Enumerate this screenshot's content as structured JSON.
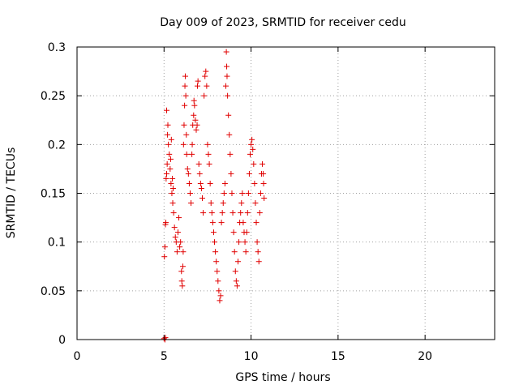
{
  "chart_data": {
    "type": "scatter",
    "title": "Day 009 of 2023, SRMTID for receiver cedu",
    "xlabel": "GPS time / hours",
    "ylabel": "SRMTID / TECUs",
    "xlim": [
      0,
      24
    ],
    "ylim": [
      0,
      0.3
    ],
    "x_ticks": [
      0,
      5,
      10,
      15,
      20
    ],
    "x_tick_labels": [
      "0",
      "5",
      "10",
      "15",
      "20"
    ],
    "y_ticks": [
      0,
      0.05,
      0.1,
      0.15,
      0.2,
      0.25,
      0.3
    ],
    "y_tick_labels": [
      "0",
      "0.05",
      "0.1",
      "0.15",
      "0.2",
      "0.25",
      "0.3"
    ],
    "grid": true,
    "marker": "+",
    "color": "#e00000",
    "series": [
      {
        "name": "SRMTID",
        "points": [
          [
            5.0,
            0.001
          ],
          [
            5.05,
            0.0
          ],
          [
            5.08,
            0.002
          ],
          [
            5.02,
            0.085
          ],
          [
            5.05,
            0.095
          ],
          [
            5.08,
            0.118
          ],
          [
            5.1,
            0.12
          ],
          [
            5.12,
            0.165
          ],
          [
            5.15,
            0.17
          ],
          [
            5.18,
            0.18
          ],
          [
            5.2,
            0.21
          ],
          [
            5.22,
            0.22
          ],
          [
            5.15,
            0.235
          ],
          [
            5.25,
            0.2
          ],
          [
            5.3,
            0.19
          ],
          [
            5.35,
            0.175
          ],
          [
            5.4,
            0.16
          ],
          [
            5.45,
            0.15
          ],
          [
            5.5,
            0.14
          ],
          [
            5.38,
            0.185
          ],
          [
            5.42,
            0.205
          ],
          [
            5.48,
            0.165
          ],
          [
            5.52,
            0.155
          ],
          [
            5.55,
            0.13
          ],
          [
            5.6,
            0.115
          ],
          [
            5.65,
            0.105
          ],
          [
            5.7,
            0.1
          ],
          [
            5.75,
            0.09
          ],
          [
            5.8,
            0.11
          ],
          [
            5.85,
            0.125
          ],
          [
            5.9,
            0.095
          ],
          [
            5.95,
            0.1
          ],
          [
            6.0,
            0.07
          ],
          [
            6.02,
            0.06
          ],
          [
            6.05,
            0.055
          ],
          [
            6.08,
            0.075
          ],
          [
            6.1,
            0.09
          ],
          [
            6.12,
            0.2
          ],
          [
            6.15,
            0.22
          ],
          [
            6.18,
            0.24
          ],
          [
            6.2,
            0.26
          ],
          [
            6.22,
            0.27
          ],
          [
            6.25,
            0.25
          ],
          [
            6.28,
            0.21
          ],
          [
            6.3,
            0.19
          ],
          [
            6.35,
            0.175
          ],
          [
            6.4,
            0.17
          ],
          [
            6.45,
            0.16
          ],
          [
            6.5,
            0.15
          ],
          [
            6.55,
            0.14
          ],
          [
            6.6,
            0.19
          ],
          [
            6.62,
            0.2
          ],
          [
            6.65,
            0.22
          ],
          [
            6.7,
            0.23
          ],
          [
            6.72,
            0.245
          ],
          [
            6.75,
            0.24
          ],
          [
            6.8,
            0.225
          ],
          [
            6.85,
            0.215
          ],
          [
            6.9,
            0.22
          ],
          [
            6.92,
            0.26
          ],
          [
            6.95,
            0.265
          ],
          [
            7.0,
            0.18
          ],
          [
            7.05,
            0.17
          ],
          [
            7.1,
            0.16
          ],
          [
            7.15,
            0.155
          ],
          [
            7.2,
            0.145
          ],
          [
            7.25,
            0.13
          ],
          [
            7.3,
            0.25
          ],
          [
            7.35,
            0.27
          ],
          [
            7.4,
            0.275
          ],
          [
            7.45,
            0.26
          ],
          [
            7.5,
            0.2
          ],
          [
            7.55,
            0.19
          ],
          [
            7.6,
            0.18
          ],
          [
            7.65,
            0.16
          ],
          [
            7.7,
            0.14
          ],
          [
            7.75,
            0.13
          ],
          [
            7.8,
            0.12
          ],
          [
            7.85,
            0.11
          ],
          [
            7.9,
            0.1
          ],
          [
            7.95,
            0.09
          ],
          [
            8.0,
            0.08
          ],
          [
            8.05,
            0.07
          ],
          [
            8.1,
            0.06
          ],
          [
            8.15,
            0.05
          ],
          [
            8.2,
            0.04
          ],
          [
            8.25,
            0.045
          ],
          [
            8.3,
            0.12
          ],
          [
            8.35,
            0.13
          ],
          [
            8.4,
            0.14
          ],
          [
            8.45,
            0.15
          ],
          [
            8.5,
            0.16
          ],
          [
            8.55,
            0.26
          ],
          [
            8.58,
            0.295
          ],
          [
            8.6,
            0.28
          ],
          [
            8.62,
            0.27
          ],
          [
            8.65,
            0.25
          ],
          [
            8.7,
            0.23
          ],
          [
            8.75,
            0.21
          ],
          [
            8.8,
            0.19
          ],
          [
            8.85,
            0.17
          ],
          [
            8.9,
            0.15
          ],
          [
            8.95,
            0.13
          ],
          [
            9.0,
            0.11
          ],
          [
            9.05,
            0.09
          ],
          [
            9.1,
            0.07
          ],
          [
            9.15,
            0.06
          ],
          [
            9.2,
            0.055
          ],
          [
            9.25,
            0.08
          ],
          [
            9.3,
            0.1
          ],
          [
            9.35,
            0.12
          ],
          [
            9.4,
            0.13
          ],
          [
            9.45,
            0.14
          ],
          [
            9.5,
            0.15
          ],
          [
            9.55,
            0.12
          ],
          [
            9.6,
            0.11
          ],
          [
            9.65,
            0.1
          ],
          [
            9.7,
            0.09
          ],
          [
            9.75,
            0.11
          ],
          [
            9.8,
            0.13
          ],
          [
            9.85,
            0.15
          ],
          [
            9.9,
            0.17
          ],
          [
            9.95,
            0.19
          ],
          [
            10.0,
            0.2
          ],
          [
            10.05,
            0.205
          ],
          [
            10.1,
            0.195
          ],
          [
            10.15,
            0.18
          ],
          [
            10.2,
            0.16
          ],
          [
            10.25,
            0.14
          ],
          [
            10.3,
            0.12
          ],
          [
            10.35,
            0.1
          ],
          [
            10.4,
            0.09
          ],
          [
            10.45,
            0.08
          ],
          [
            10.5,
            0.13
          ],
          [
            10.55,
            0.15
          ],
          [
            10.6,
            0.17
          ],
          [
            10.65,
            0.18
          ],
          [
            10.7,
            0.17
          ],
          [
            10.72,
            0.16
          ],
          [
            10.75,
            0.145
          ]
        ]
      }
    ]
  }
}
